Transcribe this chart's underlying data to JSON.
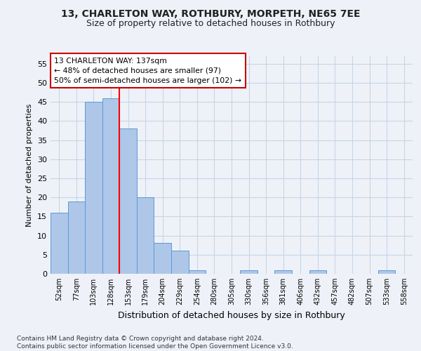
{
  "title_line1": "13, CHARLETON WAY, ROTHBURY, MORPETH, NE65 7EE",
  "title_line2": "Size of property relative to detached houses in Rothbury",
  "xlabel": "Distribution of detached houses by size in Rothbury",
  "ylabel": "Number of detached properties",
  "footnote": "Contains HM Land Registry data © Crown copyright and database right 2024.\nContains public sector information licensed under the Open Government Licence v3.0.",
  "categories": [
    "52sqm",
    "77sqm",
    "103sqm",
    "128sqm",
    "153sqm",
    "179sqm",
    "204sqm",
    "229sqm",
    "254sqm",
    "280sqm",
    "305sqm",
    "330sqm",
    "356sqm",
    "381sqm",
    "406sqm",
    "432sqm",
    "457sqm",
    "482sqm",
    "507sqm",
    "533sqm",
    "558sqm"
  ],
  "values": [
    16,
    19,
    45,
    46,
    38,
    20,
    8,
    6,
    1,
    0,
    0,
    1,
    0,
    1,
    0,
    1,
    0,
    0,
    0,
    1,
    0
  ],
  "bar_color": "#aec6e8",
  "bar_edge_color": "#5b9bd5",
  "grid_color": "#c8d4e8",
  "annotation_box_color": "#ffffff",
  "annotation_border_color": "#cc0000",
  "red_line_x": 3.5,
  "ylim": [
    0,
    57
  ],
  "yticks": [
    0,
    5,
    10,
    15,
    20,
    25,
    30,
    35,
    40,
    45,
    50,
    55
  ],
  "background_color": "#eef2f8"
}
